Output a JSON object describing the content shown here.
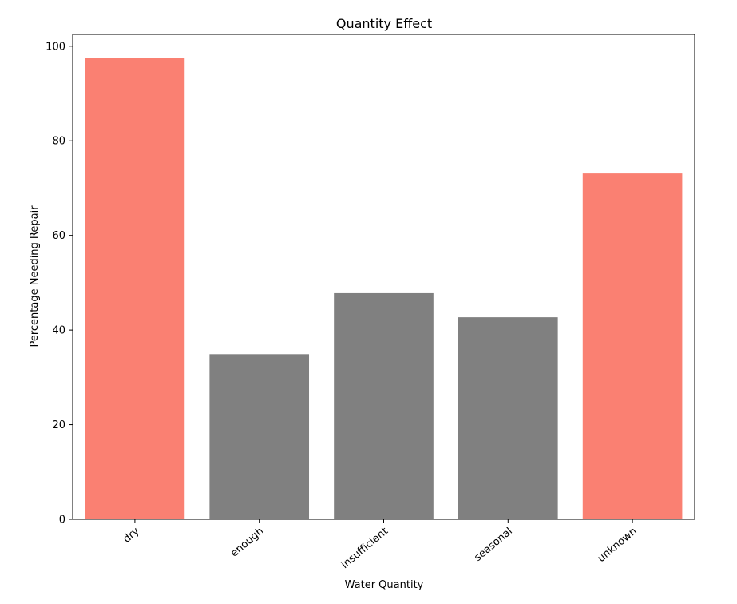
{
  "chart_data": {
    "type": "bar",
    "title": "Quantity Effect",
    "xlabel": "Water Quantity",
    "ylabel": "Percentage Needing Repair",
    "categories": [
      "dry",
      "enough",
      "insufficient",
      "seasonal",
      "unknown"
    ],
    "values": [
      97.6,
      34.9,
      47.8,
      42.7,
      73.1
    ],
    "colors": [
      "#fa8072",
      "#808080",
      "#808080",
      "#808080",
      "#fa8072"
    ],
    "ylim": [
      0,
      102.5
    ],
    "yticks": [
      0,
      20,
      40,
      60,
      80,
      100
    ],
    "grid": false,
    "legend": null
  }
}
